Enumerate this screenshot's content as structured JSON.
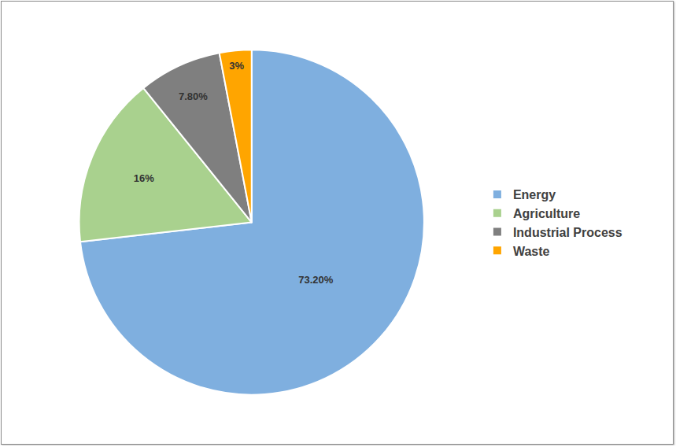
{
  "chart_data": {
    "type": "pie",
    "categories": [
      "Energy",
      "Agriculture",
      "Industrial Process",
      "Waste"
    ],
    "values": [
      73.2,
      16,
      7.8,
      3
    ],
    "value_labels": [
      "73.20%",
      "16%",
      "7.80%",
      "3%"
    ],
    "colors": [
      "#7fafdf",
      "#a9d18e",
      "#7f7f7f",
      "#ffa500"
    ],
    "data_labels": true,
    "legend": "right"
  }
}
